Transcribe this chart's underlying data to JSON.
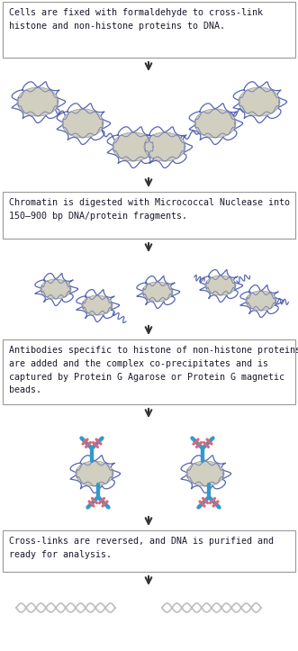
{
  "bg_color": "#ffffff",
  "box_edge_color": "#999999",
  "box_face_color": "#ffffff",
  "text_color": "#1a1a2e",
  "arrow_color": "#333333",
  "nucleosome_core_color": "#d0cfc0",
  "nucleosome_core_edge": "#999999",
  "dna_color": "#4455aa",
  "antibody_blue": "#3399cc",
  "antibody_red": "#dd6677",
  "dna_strand_color": "#bbbbbb",
  "box1_text": "Cells are fixed with formaldehyde to cross-link\nhistone and non-histone proteins to DNA.",
  "box2_text": "Chromatin is digested with Micrococcal Nuclease into\n150–900 bp DNA/protein fragments.",
  "box3_text": "Antibodies specific to histone of non-histone proteins\nare added and the complex co-precipitates and is\ncaptured by Protein G Agarose or Protein G magnetic\nbeads.",
  "box4_text": "Cross-links are reversed, and DNA is purified and\nready for analysis.",
  "font_size": 7.2
}
